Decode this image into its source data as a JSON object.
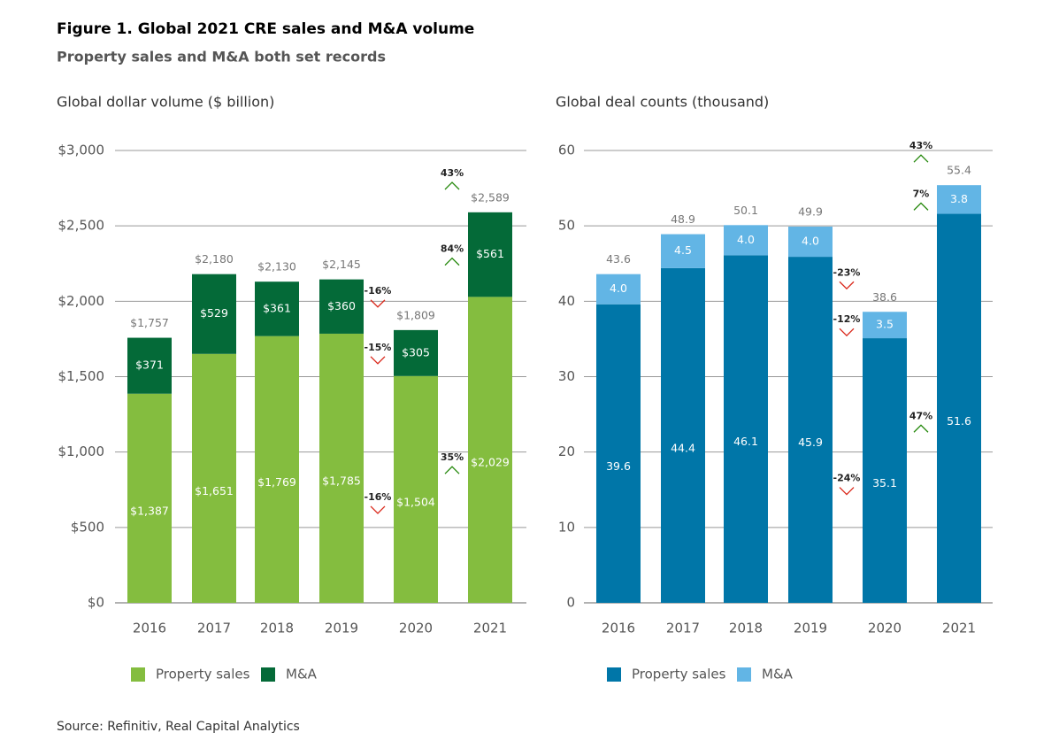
{
  "title": "Figure 1. Global 2021 CRE sales and M&A volume",
  "subtitle": "Property sales and M&A both set records",
  "source": "Source: Refinitiv, Real Capital Analytics",
  "chart_data": [
    {
      "type": "stacked-bar",
      "axis_title": "Global dollar volume ($ billion)",
      "categories": [
        "2016",
        "2017",
        "2018",
        "2019",
        "2020",
        "2021"
      ],
      "series": [
        {
          "name": "Property sales",
          "color": "#84bd3f",
          "values": [
            1387,
            1651,
            1769,
            1785,
            1504,
            2029
          ],
          "value_labels": [
            "$1,387",
            "$1,651",
            "$1,769",
            "$1,785",
            "$1,504",
            "$2,029"
          ],
          "changes": [
            null,
            null,
            null,
            null,
            "-16%",
            "35%"
          ]
        },
        {
          "name": "M&A",
          "color": "#046a38",
          "values": [
            371,
            529,
            361,
            360,
            305,
            561
          ],
          "value_labels": [
            "$371",
            "$529",
            "$361",
            "$360",
            "$305",
            "$561"
          ],
          "changes": [
            null,
            null,
            null,
            null,
            "-15%",
            "84%"
          ]
        }
      ],
      "totals": {
        "values": [
          1757,
          2180,
          2130,
          2145,
          1809,
          2589
        ],
        "value_labels": [
          "$1,757",
          "$2,180",
          "$2,130",
          "$2,145",
          "$1,809",
          "$2,589"
        ],
        "changes": [
          null,
          null,
          null,
          null,
          "-16%",
          "43%"
        ]
      },
      "ylim": [
        0,
        3000
      ],
      "yticks": [
        {
          "value": 0,
          "label": "$0"
        },
        {
          "value": 500,
          "label": "$500"
        },
        {
          "value": 1000,
          "label": "$1,000"
        },
        {
          "value": 1500,
          "label": "$1,500"
        },
        {
          "value": 2000,
          "label": "$2,000"
        },
        {
          "value": 2500,
          "label": "$2,500"
        },
        {
          "value": 3000,
          "label": "$3,000"
        }
      ],
      "grid": true,
      "legend": "bottom-left"
    },
    {
      "type": "stacked-bar",
      "axis_title": "Global deal counts (thousand)",
      "categories": [
        "2016",
        "2017",
        "2018",
        "2019",
        "2020",
        "2021"
      ],
      "series": [
        {
          "name": "Property sales",
          "color": "#0076a8",
          "values": [
            39.6,
            44.4,
            46.1,
            45.9,
            35.1,
            51.6
          ],
          "changes": [
            null,
            null,
            null,
            null,
            "-24%",
            "47%"
          ]
        },
        {
          "name": "M&A",
          "color": "#62b5e5",
          "values": [
            4.0,
            4.5,
            4.0,
            4.0,
            3.5,
            3.8
          ],
          "value_labels": [
            "4.0",
            "4.5",
            "4.0",
            "4.0",
            "3.5",
            "3.8"
          ],
          "changes": [
            null,
            null,
            null,
            null,
            "-12%",
            "7%"
          ]
        }
      ],
      "totals": {
        "values": [
          43.6,
          48.9,
          50.1,
          49.9,
          38.6,
          55.4
        ],
        "changes": [
          null,
          null,
          null,
          null,
          "-23%",
          "43%"
        ]
      },
      "ylim": [
        0,
        60
      ],
      "yticks": [
        0,
        10,
        20,
        30,
        40,
        50,
        60
      ],
      "grid": true,
      "legend": "bottom-left"
    }
  ]
}
